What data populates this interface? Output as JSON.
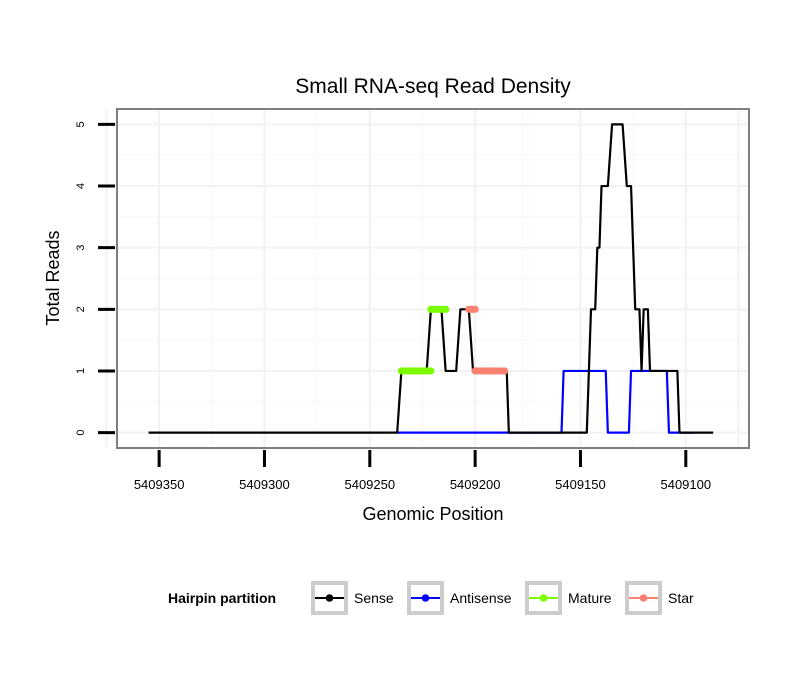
{
  "chart_data": {
    "type": "line",
    "title": "Small RNA-seq Read Density",
    "xlabel": "Genomic Position",
    "ylabel": "Total Reads",
    "x_reversed": true,
    "xlim": [
      5409370,
      5409070
    ],
    "ylim": [
      -0.25,
      5.25
    ],
    "xticks": [
      5409350,
      5409300,
      5409250,
      5409200,
      5409150,
      5409100
    ],
    "xtick_labels": [
      "5409350",
      "5409300",
      "5409250",
      "5409200",
      "5409150",
      "5409100"
    ],
    "yticks": [
      0,
      1,
      2,
      3,
      4,
      5
    ],
    "ytick_labels": [
      "0",
      "1",
      "2",
      "3",
      "4",
      "5"
    ],
    "grid": true,
    "legend": {
      "title": "Hairpin partition",
      "position": "bottom",
      "entries": [
        "Sense",
        "Antisense",
        "Mature",
        "Star"
      ]
    },
    "series": [
      {
        "name": "Sense",
        "color": "#000000",
        "style": "line",
        "points": [
          [
            5409355,
            0
          ],
          [
            5409237,
            0
          ],
          [
            5409235,
            1
          ],
          [
            5409223,
            1
          ],
          [
            5409221,
            2
          ],
          [
            5409216,
            2
          ],
          [
            5409214,
            1
          ],
          [
            5409209,
            1
          ],
          [
            5409207,
            2
          ],
          [
            5409203,
            2
          ],
          [
            5409201,
            1
          ],
          [
            5409185,
            1
          ],
          [
            5409184,
            0
          ],
          [
            5409147,
            0
          ],
          [
            5409145,
            2
          ],
          [
            5409143,
            2
          ],
          [
            5409142,
            3
          ],
          [
            5409141,
            3
          ],
          [
            5409140,
            4
          ],
          [
            5409137,
            4
          ],
          [
            5409135,
            5
          ],
          [
            5409130,
            5
          ],
          [
            5409128,
            4
          ],
          [
            5409126,
            4
          ],
          [
            5409124,
            2
          ],
          [
            5409122,
            2
          ],
          [
            5409121,
            1
          ],
          [
            5409120,
            2
          ],
          [
            5409118,
            2
          ],
          [
            5409117,
            1
          ],
          [
            5409104,
            1
          ],
          [
            5409103,
            0
          ],
          [
            5409087,
            0
          ]
        ]
      },
      {
        "name": "Antisense",
        "color": "#0000ff",
        "style": "line",
        "points": [
          [
            5409237,
            0
          ],
          [
            5409159,
            0
          ],
          [
            5409158,
            1
          ],
          [
            5409138,
            1
          ],
          [
            5409137,
            0
          ],
          [
            5409127,
            0
          ],
          [
            5409126,
            1
          ],
          [
            5409109,
            1
          ],
          [
            5409108,
            0
          ],
          [
            5409096,
            0
          ]
        ]
      },
      {
        "name": "Mature",
        "color": "#7cfc00",
        "style": "points",
        "segments": [
          {
            "x": [
              5409235,
              5409221
            ],
            "y": 1
          },
          {
            "x": [
              5409221,
              5409214
            ],
            "y": 2
          }
        ]
      },
      {
        "name": "Star",
        "color": "#fa8072",
        "style": "points",
        "segments": [
          {
            "x": [
              5409203,
              5409200
            ],
            "y": 2
          },
          {
            "x": [
              5409200,
              5409186
            ],
            "y": 1
          }
        ]
      }
    ]
  }
}
